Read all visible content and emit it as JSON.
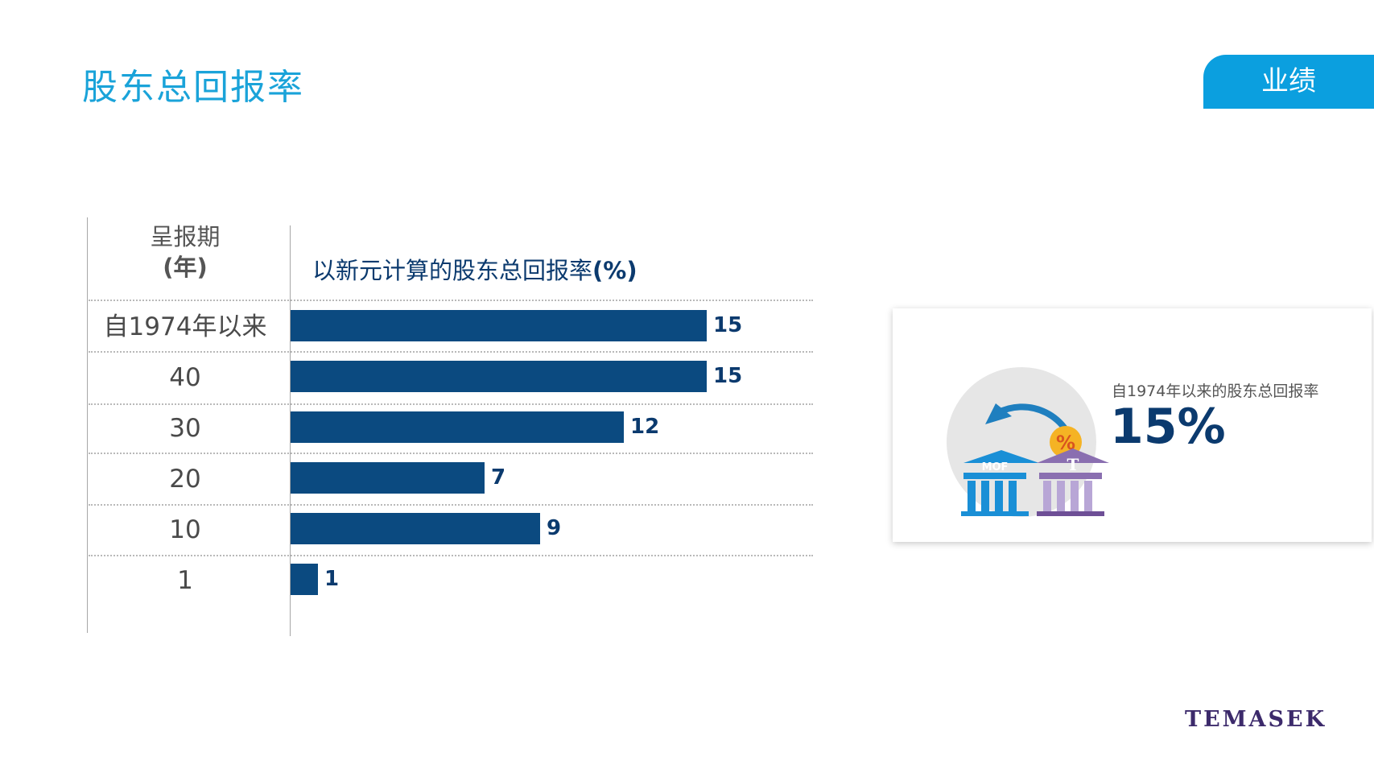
{
  "page": {
    "title": "股东总回报率",
    "section_tab": "业绩",
    "logo_text": "TEMASEK"
  },
  "table": {
    "period_header_line1": "呈报期",
    "period_header_line2": "(年)",
    "chart_header_text": "以新元计算的股东总回报率",
    "chart_header_unit": "(%)"
  },
  "chart_data": {
    "type": "bar",
    "orientation": "horizontal",
    "title": "以新元计算的股东总回报率(%)",
    "category_header": "呈报期(年)",
    "categories": [
      "自1974年以来",
      "40",
      "30",
      "20",
      "10",
      "1"
    ],
    "values": [
      15,
      15,
      12,
      7,
      9,
      1
    ],
    "value_labels": [
      "15",
      "15",
      "12",
      "7",
      "9",
      "1"
    ],
    "bar_color": "#0b4a80",
    "grid": false,
    "legend": "none"
  },
  "card": {
    "caption": "自1974年以来的股东总回报率",
    "value": "15%",
    "icon_left_label": "MOF",
    "icon_right_label": "T",
    "icon_badge": "%"
  },
  "colors": {
    "title": "#1aa3d9",
    "tab_bg": "#0b9fdf",
    "bar": "#0b4a80",
    "value_text": "#0b3a6e",
    "logo": "#3c2a6b"
  }
}
